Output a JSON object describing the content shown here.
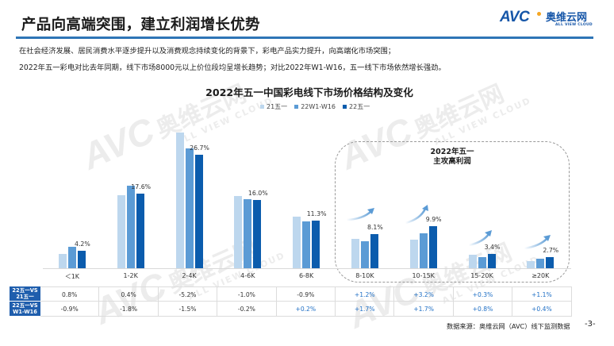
{
  "header": {
    "title": "产品向高端突围，建立利润增长优势",
    "logo": {
      "mark": "AVC",
      "name_cn": "奥维云网",
      "name_en": "ALL VIEW CLOUD"
    }
  },
  "body_text": [
    "在社会经济发展、居民消费水平逐步提升以及消费观念持续变化的背景下，彩电产品实力提升，向高端化市场突围；",
    "2022年五一彩电对比去年同期，线下市场8000元以上价位段均呈增长趋势；对比2022年W1-W16，五一线下市场依然增长强劲。"
  ],
  "watermark": {
    "mark": "AVC",
    "name_cn": "奥维云网",
    "name_en": "ALL VIEW CLOUD"
  },
  "colors": {
    "accent": "#2E75B6",
    "series_light": "#BDD7EE",
    "series_mid": "#5B9BD5",
    "series_dark": "#0B5CAD",
    "table_header": "#1F5EAD",
    "positive": "#1F6FC5"
  },
  "focus_box": {
    "line1": "2022年五一",
    "line2": "主攻高利润"
  },
  "chart_data": {
    "type": "bar",
    "title": "2022年五一中国彩电线下市场价格结构及变化",
    "xlabel": "",
    "ylabel": "",
    "ylim": [
      0,
      35
    ],
    "grid": false,
    "legend_position": "top",
    "categories": [
      "＜1K",
      "1-2K",
      "2-4K",
      "4-6K",
      "6-8K",
      "8-10K",
      "10-15K",
      "15-20K",
      "≥20K"
    ],
    "series": [
      {
        "name": "21五一",
        "color": "#BDD7EE",
        "values": [
          3.4,
          17.2,
          31.9,
          17.0,
          12.2,
          6.9,
          6.7,
          3.1,
          1.6
        ]
      },
      {
        "name": "22W1-W16",
        "color": "#5B9BD5",
        "values": [
          5.1,
          19.4,
          28.2,
          16.2,
          11.1,
          6.4,
          8.2,
          2.6,
          2.3
        ]
      },
      {
        "name": "22五一",
        "color": "#0B5CAD",
        "values": [
          4.2,
          17.6,
          26.7,
          16.0,
          11.3,
          8.1,
          9.9,
          3.4,
          2.7
        ]
      }
    ],
    "data_labels": [
      "4.2%",
      "17.6%",
      "26.7%",
      "16.0%",
      "11.3%",
      "8.1%",
      "9.9%",
      "3.4%",
      "2.7%"
    ],
    "annotations": [
      "2022年五一 主攻高利润",
      "up-trend arrows over 8-10K, 10-15K, 15-20K, ≥20K"
    ],
    "table": {
      "rows": [
        {
          "label_line1": "22五一VS",
          "label_line2": "21五一",
          "values": [
            "0.8%",
            "0.4%",
            "-5.2%",
            "-1.0%",
            "-0.9%",
            "+1.2%",
            "+3.2%",
            "+0.3%",
            "+1.1%"
          ]
        },
        {
          "label_line1": "22五一VS",
          "label_line2": "W1-W16",
          "values": [
            "-0.9%",
            "-1.8%",
            "-1.5%",
            "-0.2%",
            "+0.2%",
            "+1.7%",
            "+1.7%",
            "+0.8%",
            "+0.4%"
          ]
        }
      ]
    }
  },
  "footer": {
    "source": "数据来源：奥维云网（AVC）线下监测数据",
    "page": "-3-"
  }
}
